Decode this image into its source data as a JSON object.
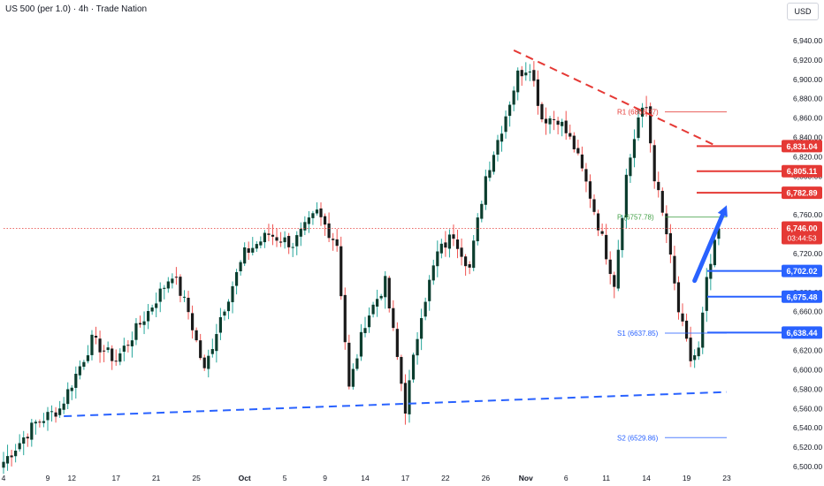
{
  "header": {
    "title": "US 500 (per 1.0) · 4h · Trade Nation",
    "currency": "USD"
  },
  "colors": {
    "up": "#26a69a",
    "up_body": "#0b3d2e",
    "down": "#ef5350",
    "down_body": "#1a1a1a",
    "resistance": "#e53935",
    "support": "#2962ff",
    "pivot": "#43a047",
    "price_line": "#e53935"
  },
  "chart_data": {
    "type": "candlestick",
    "ylim": [
      6500,
      6950
    ],
    "y_ticks": [
      "6,500.00",
      "6,520.00",
      "6,540.00",
      "6,560.00",
      "6,580.00",
      "6,600.00",
      "6,620.00",
      "6,640.00",
      "6,660.00",
      "6,680.00",
      "6,700.00",
      "6,720.00",
      "6,740.00",
      "6,760.00",
      "6,780.00",
      "6,800.00",
      "6,820.00",
      "6,840.00",
      "6,860.00",
      "6,880.00",
      "6,900.00",
      "6,920.00",
      "6,940.00"
    ],
    "x_ticks": [
      "4",
      "9",
      "12",
      "17",
      "21",
      "25",
      "Oct",
      "5",
      "9",
      "14",
      "17",
      "22",
      "26",
      "Nov",
      "6",
      "11",
      "14",
      "19",
      "23"
    ],
    "x_tick_index": [
      0,
      11,
      17,
      28,
      38,
      48,
      60,
      70,
      80,
      90,
      100,
      110,
      120,
      130,
      140,
      150,
      160,
      170,
      180
    ],
    "price_path": [
      [
        0,
        6505
      ],
      [
        8,
        6545
      ],
      [
        14,
        6560
      ],
      [
        22,
        6630
      ],
      [
        28,
        6610
      ],
      [
        36,
        6660
      ],
      [
        42,
        6700
      ],
      [
        46,
        6660
      ],
      [
        50,
        6598
      ],
      [
        54,
        6655
      ],
      [
        60,
        6720
      ],
      [
        66,
        6740
      ],
      [
        72,
        6730
      ],
      [
        78,
        6762
      ],
      [
        83,
        6730
      ],
      [
        86,
        6580
      ],
      [
        90,
        6650
      ],
      [
        95,
        6690
      ],
      [
        100,
        6560
      ],
      [
        104,
        6660
      ],
      [
        108,
        6720
      ],
      [
        112,
        6740
      ],
      [
        116,
        6705
      ],
      [
        120,
        6800
      ],
      [
        124,
        6850
      ],
      [
        128,
        6905
      ],
      [
        131,
        6915
      ],
      [
        134,
        6860
      ],
      [
        138,
        6860
      ],
      [
        142,
        6830
      ],
      [
        146,
        6780
      ],
      [
        150,
        6720
      ],
      [
        152,
        6690
      ],
      [
        155,
        6800
      ],
      [
        158,
        6860
      ],
      [
        160,
        6870
      ],
      [
        162,
        6800
      ],
      [
        165,
        6740
      ],
      [
        168,
        6660
      ],
      [
        171,
        6610
      ],
      [
        173,
        6620
      ],
      [
        175,
        6690
      ],
      [
        178,
        6746
      ]
    ],
    "total_candles": 179,
    "current_price": {
      "label": "6,746.00",
      "countdown": "03:44:53",
      "value": 6746
    },
    "right_levels": [
      {
        "label": "6,831.04",
        "value": 6831.04,
        "kind": "resistance"
      },
      {
        "label": "6,805.11",
        "value": 6805.11,
        "kind": "resistance"
      },
      {
        "label": "6,782.89",
        "value": 6782.89,
        "kind": "resistance"
      },
      {
        "label": "6,702.02",
        "value": 6702.02,
        "kind": "support"
      },
      {
        "label": "6,675.48",
        "value": 6675.48,
        "kind": "support"
      },
      {
        "label": "6,638.44",
        "value": 6638.44,
        "kind": "support"
      }
    ],
    "pivots": [
      {
        "label": "R1 (6866.37)",
        "value": 6866.37,
        "kind": "resistance"
      },
      {
        "label": "P (6757.78)",
        "value": 6757.78,
        "kind": "pivot"
      },
      {
        "label": "S1 (6637.85)",
        "value": 6637.85,
        "kind": "support"
      },
      {
        "label": "S2 (6529.86)",
        "value": 6529.86,
        "kind": "support"
      }
    ],
    "trendlines": [
      {
        "name": "descending-resistance",
        "from": [
          127,
          6930
        ],
        "to": [
          177,
          6832
        ]
      },
      {
        "name": "ascending-support",
        "from": [
          15,
          6552
        ],
        "to": [
          180,
          6577
        ]
      }
    ],
    "arrow": {
      "from": [
        172,
        6692
      ],
      "to": [
        180,
        6770
      ]
    }
  }
}
